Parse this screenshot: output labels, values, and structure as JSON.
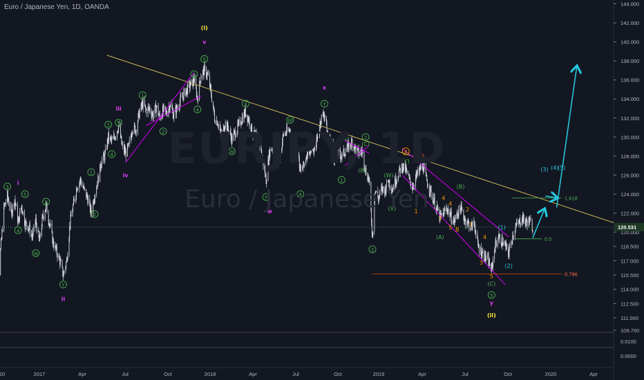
{
  "header": {
    "title": "Euro / Japanese Yen, 1D, OANDA"
  },
  "watermark": {
    "symbol": "EURJPY, 1D",
    "name": "Euro / Japanese Yen"
  },
  "colors": {
    "background": "#131722",
    "candles": "#d1d4dc",
    "wave_green": "#4caf50",
    "wave_magenta": "#e040fb",
    "wave_yellow": "#ffeb3b",
    "wave_cyan": "#26c6da",
    "wave_orange": "#ff9800",
    "trendline": "#c9b458",
    "channel": "#d500f9",
    "arrow": "#26c6da",
    "fib_618": "#4caf50",
    "fib_786": "#e65100"
  },
  "chart_data": {
    "type": "candlestick",
    "title": "Euro / Japanese Yen, 1D, OANDA",
    "ylim": [
      0,
      144
    ],
    "y_ticks": [
      "144.000",
      "142.000",
      "140.000",
      "138.000",
      "136.000",
      "134.000",
      "132.000",
      "130.000",
      "128.000",
      "126.000",
      "124.000",
      "122.000",
      "120.000",
      "118.500",
      "117.000",
      "115.500",
      "114.000",
      "112.500",
      "111.000",
      "109.700"
    ],
    "indicator_ticks": [
      "0.0100",
      "0.0000"
    ],
    "x_ticks": [
      "20",
      "2017",
      "Apr",
      "Jul",
      "Oct",
      "2018",
      "Apr",
      "Jul",
      "Oct",
      "2019",
      "Apr",
      "Jul",
      "Oct",
      "2020",
      "Apr"
    ],
    "last_price": "120.531",
    "price_path": [
      [
        "2016-11-20",
        115.5
      ],
      [
        "2016-11-28",
        113.0
      ],
      [
        "2016-12-05",
        118.0
      ],
      [
        "2016-12-12",
        122.5
      ],
      [
        "2016-12-19",
        123.8
      ],
      [
        "2016-12-27",
        122.0
      ],
      [
        "2017-01-03",
        123.5
      ],
      [
        "2017-01-10",
        121.0
      ],
      [
        "2017-01-17",
        122.8
      ],
      [
        "2017-01-24",
        121.0
      ],
      [
        "2017-02-01",
        120.5
      ],
      [
        "2017-02-08",
        119.5
      ],
      [
        "2017-02-15",
        121.2
      ],
      [
        "2017-02-22",
        119.0
      ],
      [
        "2017-03-01",
        121.5
      ],
      [
        "2017-03-08",
        122.8
      ],
      [
        "2017-03-15",
        121.0
      ],
      [
        "2017-03-22",
        119.0
      ],
      [
        "2017-03-29",
        118.0
      ],
      [
        "2017-04-05",
        117.0
      ],
      [
        "2017-04-12",
        115.5
      ],
      [
        "2017-04-19",
        117.0
      ],
      [
        "2017-04-26",
        121.0
      ],
      [
        "2017-05-03",
        123.0
      ],
      [
        "2017-05-10",
        124.8
      ],
      [
        "2017-05-17",
        125.5
      ],
      [
        "2017-05-24",
        124.5
      ],
      [
        "2017-06-01",
        123.5
      ],
      [
        "2017-06-08",
        122.0
      ],
      [
        "2017-06-15",
        124.0
      ],
      [
        "2017-06-22",
        125.5
      ],
      [
        "2017-06-29",
        127.5
      ],
      [
        "2017-07-06",
        128.0
      ],
      [
        "2017-07-13",
        130.0
      ],
      [
        "2017-07-20",
        129.5
      ],
      [
        "2017-07-27",
        130.2
      ],
      [
        "2017-08-03",
        131.2
      ],
      [
        "2017-08-10",
        129.0
      ],
      [
        "2017-08-17",
        128.3
      ],
      [
        "2017-08-24",
        129.0
      ],
      [
        "2017-08-31",
        131.0
      ],
      [
        "2017-09-07",
        130.8
      ],
      [
        "2017-09-14",
        132.5
      ],
      [
        "2017-09-21",
        133.5
      ],
      [
        "2017-09-28",
        132.8
      ],
      [
        "2017-10-05",
        133.0
      ],
      [
        "2017-10-12",
        132.3
      ],
      [
        "2017-10-19",
        133.2
      ],
      [
        "2017-10-26",
        132.0
      ],
      [
        "2017-11-02",
        132.8
      ],
      [
        "2017-11-09",
        132.5
      ],
      [
        "2017-11-16",
        133.5
      ],
      [
        "2017-11-23",
        132.3
      ],
      [
        "2017-11-30",
        133.0
      ],
      [
        "2017-12-07",
        133.8
      ],
      [
        "2017-12-14",
        134.5
      ],
      [
        "2017-12-21",
        135.0
      ],
      [
        "2017-12-28",
        135.5
      ],
      [
        "2018-01-04",
        136.0
      ],
      [
        "2018-01-11",
        134.0
      ],
      [
        "2018-01-18",
        136.5
      ],
      [
        "2018-01-25",
        137.0
      ],
      [
        "2018-02-01",
        136.5
      ],
      [
        "2018-02-08",
        134.5
      ],
      [
        "2018-02-15",
        132.0
      ],
      [
        "2018-02-22",
        131.5
      ],
      [
        "2018-03-01",
        130.0
      ],
      [
        "2018-03-08",
        131.5
      ],
      [
        "2018-03-15",
        130.8
      ],
      [
        "2018-03-22",
        129.8
      ],
      [
        "2018-03-29",
        130.5
      ],
      [
        "2018-04-05",
        131.2
      ],
      [
        "2018-04-12",
        132.0
      ],
      [
        "2018-04-19",
        132.6
      ],
      [
        "2018-04-26",
        131.8
      ],
      [
        "2018-05-03",
        130.5
      ],
      [
        "2018-05-10",
        130.0
      ],
      [
        "2018-05-17",
        129.5
      ],
      [
        "2018-05-24",
        127.5
      ],
      [
        "2018-05-31",
        125.5
      ],
      [
        "2018-06-07",
        128.5
      ],
      [
        "2018-06-14",
        129.0
      ],
      [
        "2018-06-21",
        127.5
      ],
      [
        "2018-06-28",
        128.0
      ],
      [
        "2018-07-05",
        130.2
      ],
      [
        "2018-07-12",
        130.5
      ],
      [
        "2018-07-19",
        130.8
      ],
      [
        "2018-07-26",
        128.0
      ],
      [
        "2018-08-02",
        129.0
      ],
      [
        "2018-08-09",
        126.3
      ],
      [
        "2018-08-16",
        127.0
      ],
      [
        "2018-08-23",
        128.5
      ],
      [
        "2018-08-30",
        128.8
      ],
      [
        "2018-09-06",
        128.5
      ],
      [
        "2018-09-13",
        130.0
      ],
      [
        "2018-09-20",
        132.0
      ],
      [
        "2018-09-27",
        132.5
      ],
      [
        "2018-10-04",
        130.0
      ],
      [
        "2018-10-11",
        129.5
      ],
      [
        "2018-10-18",
        127.5
      ],
      [
        "2018-10-25",
        128.5
      ],
      [
        "2018-11-01",
        128.0
      ],
      [
        "2018-11-08",
        128.5
      ],
      [
        "2018-11-15",
        129.0
      ],
      [
        "2018-11-22",
        129.5
      ],
      [
        "2018-11-29",
        128.8
      ],
      [
        "2018-12-06",
        128.3
      ],
      [
        "2018-12-13",
        128.5
      ],
      [
        "2018-12-20",
        126.5
      ],
      [
        "2018-12-27",
        125.5
      ],
      [
        "2019-01-03",
        119.5
      ],
      [
        "2019-01-08",
        124.5
      ],
      [
        "2019-01-15",
        123.5
      ],
      [
        "2019-01-22",
        124.5
      ],
      [
        "2019-01-29",
        124.5
      ],
      [
        "2019-02-05",
        125.5
      ],
      [
        "2019-02-12",
        124.5
      ],
      [
        "2019-02-19",
        125.5
      ],
      [
        "2019-02-26",
        126.3
      ],
      [
        "2019-03-05",
        127.0
      ],
      [
        "2019-03-12",
        126.5
      ],
      [
        "2019-03-19",
        125.5
      ],
      [
        "2019-03-26",
        124.8
      ],
      [
        "2019-04-02",
        125.8
      ],
      [
        "2019-04-09",
        126.5
      ],
      [
        "2019-04-16",
        127.0
      ],
      [
        "2019-04-23",
        125.5
      ],
      [
        "2019-04-30",
        124.5
      ],
      [
        "2019-05-07",
        123.5
      ],
      [
        "2019-05-14",
        122.5
      ],
      [
        "2019-05-21",
        121.5
      ],
      [
        "2019-05-28",
        122.0
      ],
      [
        "2019-06-04",
        122.5
      ],
      [
        "2019-06-11",
        121.8
      ],
      [
        "2019-06-18",
        121.0
      ],
      [
        "2019-06-25",
        122.0
      ],
      [
        "2019-07-02",
        122.5
      ],
      [
        "2019-07-09",
        121.5
      ],
      [
        "2019-07-16",
        121.0
      ],
      [
        "2019-07-23",
        120.5
      ],
      [
        "2019-07-30",
        121.0
      ],
      [
        "2019-08-06",
        118.5
      ],
      [
        "2019-08-13",
        118.0
      ],
      [
        "2019-08-20",
        117.5
      ],
      [
        "2019-08-27",
        117.0
      ],
      [
        "2019-09-03",
        116.0
      ],
      [
        "2019-09-10",
        118.5
      ],
      [
        "2019-09-17",
        119.5
      ],
      [
        "2019-09-24",
        119.0
      ],
      [
        "2019-10-01",
        118.5
      ],
      [
        "2019-10-08",
        117.8
      ],
      [
        "2019-10-15",
        119.5
      ],
      [
        "2019-10-22",
        120.5
      ],
      [
        "2019-10-29",
        121.0
      ],
      [
        "2019-11-05",
        121.5
      ],
      [
        "2019-11-12",
        121.0
      ],
      [
        "2019-11-19",
        121.2
      ],
      [
        "2019-11-26",
        120.5
      ]
    ],
    "elliott_labels": [
      {
        "text": "(i)",
        "date": "2018-01-25",
        "price": 141.5,
        "color": "#ffeb3b"
      },
      {
        "text": "v",
        "date": "2018-01-25",
        "price": 140.0,
        "color": "#e040fb"
      },
      {
        "text": "5",
        "date": "2018-01-25",
        "price": 138.2,
        "color": "#4caf50",
        "circle": true
      },
      {
        "text": "3",
        "date": "2018-01-04",
        "price": 136.6,
        "color": "#4caf50",
        "circle": true
      },
      {
        "text": "4",
        "date": "2018-01-11",
        "price": 132.9,
        "color": "#4caf50",
        "circle": true
      },
      {
        "text": "1",
        "date": "2017-09-21",
        "price": 134.4,
        "color": "#4caf50",
        "circle": true
      },
      {
        "text": "2",
        "date": "2017-11-02",
        "price": 130.6,
        "color": "#4caf50",
        "circle": true
      },
      {
        "text": "iii",
        "date": "2017-08-03",
        "price": 133.0,
        "color": "#e040fb"
      },
      {
        "text": "3",
        "date": "2017-07-13",
        "price": 131.3,
        "color": "#4caf50",
        "circle": true
      },
      {
        "text": "5",
        "date": "2017-08-03",
        "price": 131.5,
        "color": "#4caf50",
        "circle": true
      },
      {
        "text": "4",
        "date": "2017-07-20",
        "price": 128.2,
        "color": "#4caf50",
        "circle": true
      },
      {
        "text": "iv",
        "date": "2017-08-17",
        "price": 126.0,
        "color": "#e040fb"
      },
      {
        "text": "1",
        "date": "2017-06-08",
        "price": 126.3,
        "color": "#4caf50",
        "circle": true
      },
      {
        "text": "2",
        "date": "2017-06-15",
        "price": 121.9,
        "color": "#4caf50",
        "circle": true
      },
      {
        "text": "i",
        "date": "2017-01-10",
        "price": 125.2,
        "color": "#e040fb"
      },
      {
        "text": "3",
        "date": "2016-12-19",
        "price": 124.8,
        "color": "#4caf50",
        "circle": true
      },
      {
        "text": "5",
        "date": "2017-01-24",
        "price": 124.0,
        "color": "#4caf50",
        "circle": true
      },
      {
        "text": "4",
        "date": "2017-01-10",
        "price": 120.2,
        "color": "#4caf50",
        "circle": true
      },
      {
        "text": "W",
        "date": "2017-02-15",
        "price": 117.8,
        "color": "#4caf50",
        "circle": true
      },
      {
        "text": "X",
        "date": "2017-03-08",
        "price": 123.2,
        "color": "#4caf50",
        "circle": true
      },
      {
        "text": "Y",
        "date": "2017-04-12",
        "price": 114.5,
        "color": "#4caf50",
        "circle": true
      },
      {
        "text": "ii",
        "date": "2017-04-12",
        "price": 113.0,
        "color": "#e040fb"
      },
      {
        "text": "X",
        "date": "2018-04-19",
        "price": 133.5,
        "color": "#4caf50",
        "circle": true
      },
      {
        "text": "W",
        "date": "2018-03-22",
        "price": 128.5,
        "color": "#4caf50",
        "circle": true
      },
      {
        "text": "W",
        "date": "2018-07-19",
        "price": 131.8,
        "color": "#4caf50",
        "circle": true
      },
      {
        "text": "Y",
        "date": "2018-05-31",
        "price": 123.7,
        "color": "#4caf50",
        "circle": true
      },
      {
        "text": "w",
        "date": "2018-06-07",
        "price": 122.2,
        "color": "#e040fb"
      },
      {
        "text": "X",
        "date": "2018-08-09",
        "price": 124.0,
        "color": "#4caf50",
        "circle": true
      },
      {
        "text": "x",
        "date": "2018-09-27",
        "price": 135.2,
        "color": "#e040fb"
      },
      {
        "text": "Y",
        "date": "2018-09-27",
        "price": 133.5,
        "color": "#4caf50",
        "circle": true
      },
      {
        "text": "(A)",
        "date": "2018-11-08",
        "price": 129.8,
        "color": "#4caf50"
      },
      {
        "text": "1",
        "date": "2018-11-01",
        "price": 125.5,
        "color": "#4caf50",
        "circle": true
      },
      {
        "text": "(C)",
        "date": "2018-12-20",
        "price": 129.3,
        "color": "#4caf50"
      },
      {
        "text": "2",
        "date": "2018-12-20",
        "price": 130.0,
        "color": "#4caf50",
        "circle": true
      },
      {
        "text": "(B)",
        "date": "2018-12-13",
        "price": 126.5,
        "color": "#4caf50"
      },
      {
        "text": "3",
        "date": "2019-01-03",
        "price": 118.2,
        "color": "#4caf50",
        "circle": true
      },
      {
        "text": "(W)",
        "date": "2019-02-05",
        "price": 126.0,
        "color": "#4caf50"
      },
      {
        "text": "(X)",
        "date": "2019-02-12",
        "price": 122.5,
        "color": "#4caf50"
      },
      {
        "text": "4",
        "date": "2019-03-12",
        "price": 128.5,
        "color": "#ff9800",
        "circle": true
      },
      {
        "text": "(Y)",
        "date": "2019-03-12",
        "price": 127.5,
        "color": "#4caf50"
      },
      {
        "text": "2",
        "date": "2019-04-16",
        "price": 128.0,
        "color": "#ff5722"
      },
      {
        "text": "1",
        "date": "2019-04-02",
        "price": 122.2,
        "color": "#ff9800"
      },
      {
        "text": "(A)",
        "date": "2019-05-21",
        "price": 119.5,
        "color": "#4caf50"
      },
      {
        "text": "4",
        "date": "2019-05-28",
        "price": 123.6,
        "color": "#ff9800"
      },
      {
        "text": "4",
        "date": "2019-06-11",
        "price": 123.0,
        "color": "#ff9800"
      },
      {
        "text": "3",
        "date": "2019-05-21",
        "price": 121.5,
        "color": "#ff9800"
      },
      {
        "text": "(B)",
        "date": "2019-07-02",
        "price": 124.8,
        "color": "#4caf50"
      },
      {
        "text": "2",
        "date": "2019-07-16",
        "price": 122.4,
        "color": "#ff9800"
      },
      {
        "text": "B",
        "date": "2019-06-25",
        "price": 120.3,
        "color": "#ff9800"
      },
      {
        "text": "5",
        "date": "2019-06-11",
        "price": 120.5,
        "color": "#ff9800"
      },
      {
        "text": "1",
        "date": "2019-07-23",
        "price": 120.8,
        "color": "#ff9800"
      },
      {
        "text": "4",
        "date": "2019-08-20",
        "price": 119.5,
        "color": "#ff9800"
      },
      {
        "text": "3",
        "date": "2019-08-13",
        "price": 116.8,
        "color": "#ff9800"
      },
      {
        "text": "5",
        "date": "2019-09-03",
        "price": 115.4,
        "color": "#ff9800"
      },
      {
        "text": "(C)",
        "date": "2019-09-03",
        "price": 114.6,
        "color": "#4caf50"
      },
      {
        "text": "5",
        "date": "2019-09-03",
        "price": 113.4,
        "color": "#4caf50",
        "circle": true
      },
      {
        "text": "y",
        "date": "2019-09-03",
        "price": 112.6,
        "color": "#e040fb"
      },
      {
        "text": "(ii)",
        "date": "2019-09-03",
        "price": 111.3,
        "color": "#ffeb3b"
      },
      {
        "text": "(1)",
        "date": "2019-09-24",
        "price": 120.5,
        "color": "#26c6da"
      },
      {
        "text": "(2)",
        "date": "2019-10-08",
        "price": 116.5,
        "color": "#26c6da"
      },
      {
        "text": "(3)",
        "date": "2019-12-20",
        "price": 126.6,
        "color": "#26c6da"
      },
      {
        "text": "(4)",
        "date": "2020-01-10",
        "price": 126.8,
        "color": "#26c6da"
      },
      {
        "text": "(5)",
        "date": "2020-01-24",
        "price": 126.8,
        "color": "#26c6da"
      }
    ],
    "annotations": [
      {
        "text": "1.618",
        "price": 123.6,
        "date": "2020-01-30",
        "color": "#4caf50"
      },
      {
        "text": "0.5",
        "price": 119.3,
        "date": "2019-12-20",
        "color": "#4caf50"
      },
      {
        "text": "0.786",
        "price": 115.6,
        "date": "2020-01-30",
        "color": "#ff7043"
      }
    ]
  }
}
